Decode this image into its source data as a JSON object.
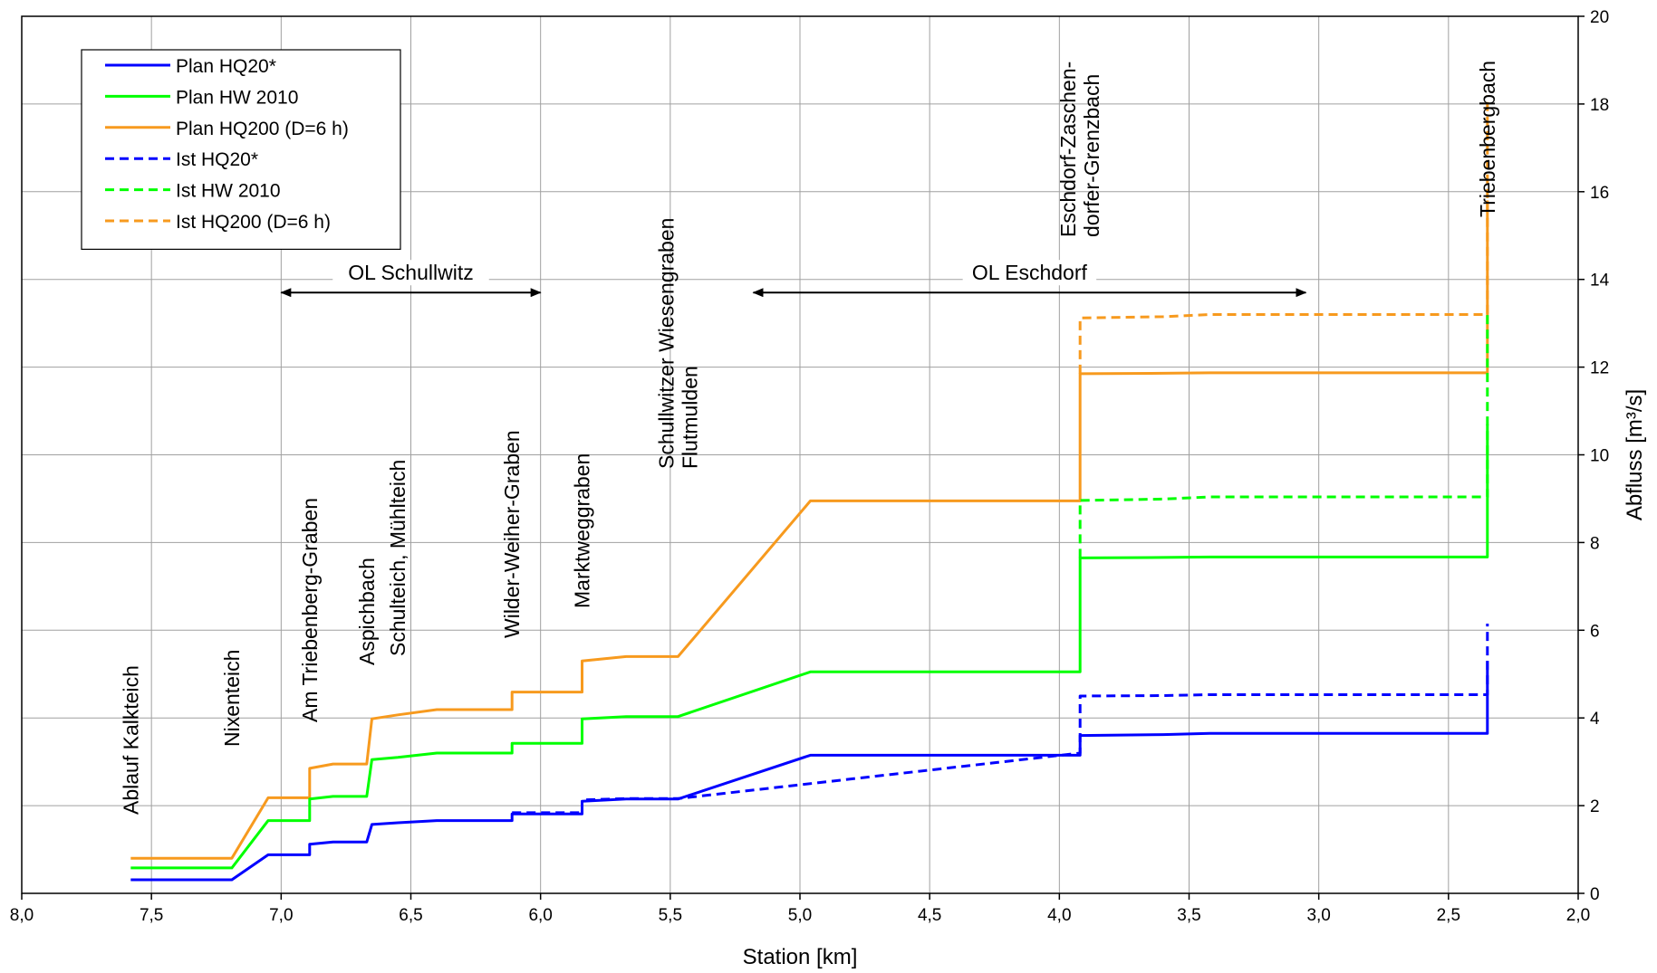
{
  "chart_data": {
    "type": "line",
    "xlabel": "Station [km]",
    "ylabel": "Abfluss [m³/s]",
    "xlim": [
      8.0,
      2.0
    ],
    "ylim": [
      0,
      20
    ],
    "x_reversed": true,
    "y_axis_side": "right",
    "grid": true,
    "legend_position": "top-left",
    "x_ticks": [
      "8,0",
      "7,5",
      "7,0",
      "6,5",
      "6,0",
      "5,5",
      "5,0",
      "4,5",
      "4,0",
      "3,5",
      "3,0",
      "2,5",
      "2,0"
    ],
    "x_tick_values": [
      8.0,
      7.5,
      7.0,
      6.5,
      6.0,
      5.5,
      5.0,
      4.5,
      4.0,
      3.5,
      3.0,
      2.5,
      2.0
    ],
    "y_ticks": [
      "0",
      "2",
      "4",
      "6",
      "8",
      "10",
      "12",
      "14",
      "16",
      "18",
      "20"
    ],
    "y_tick_values": [
      0,
      2,
      4,
      6,
      8,
      10,
      12,
      14,
      16,
      18,
      20
    ],
    "series": [
      {
        "name": "Plan HQ20*",
        "color": "#0000FF",
        "dash": false,
        "x": [
          7.58,
          7.19,
          7.05,
          6.89,
          6.89,
          6.8,
          6.67,
          6.65,
          6.55,
          6.4,
          6.11,
          6.11,
          5.84,
          5.84,
          5.67,
          5.47,
          4.96,
          3.92,
          3.92,
          3.6,
          3.42,
          2.35,
          2.35
        ],
        "y": [
          0.31,
          0.31,
          0.88,
          0.88,
          1.12,
          1.17,
          1.17,
          1.57,
          1.61,
          1.66,
          1.66,
          1.81,
          1.81,
          2.1,
          2.15,
          2.15,
          3.15,
          3.15,
          3.6,
          3.62,
          3.65,
          3.65,
          5.3
        ]
      },
      {
        "name": "Plan HW 2010",
        "color": "#00FF00",
        "dash": false,
        "x": [
          7.58,
          7.19,
          7.05,
          6.89,
          6.89,
          6.8,
          6.67,
          6.65,
          6.55,
          6.4,
          6.11,
          6.11,
          5.84,
          5.84,
          5.67,
          5.47,
          4.96,
          3.92,
          3.92,
          3.6,
          3.42,
          2.35,
          2.35
        ],
        "y": [
          0.58,
          0.58,
          1.66,
          1.66,
          2.15,
          2.21,
          2.21,
          3.05,
          3.1,
          3.2,
          3.2,
          3.42,
          3.42,
          3.98,
          4.03,
          4.03,
          5.05,
          5.05,
          7.65,
          7.66,
          7.67,
          7.67,
          10.7
        ]
      },
      {
        "name": "Plan HQ200 (D=6 h)",
        "color": "#F79A1E",
        "dash": false,
        "x": [
          7.58,
          7.19,
          7.05,
          6.89,
          6.89,
          6.8,
          6.67,
          6.65,
          6.55,
          6.4,
          6.11,
          6.11,
          5.84,
          5.84,
          5.67,
          5.47,
          4.96,
          3.92,
          3.92,
          3.6,
          3.42,
          2.35,
          2.35
        ],
        "y": [
          0.8,
          0.8,
          2.18,
          2.18,
          2.85,
          2.95,
          2.95,
          3.98,
          4.07,
          4.19,
          4.19,
          4.59,
          4.59,
          5.3,
          5.4,
          5.4,
          8.95,
          8.95,
          11.85,
          11.86,
          11.87,
          11.87,
          15.8
        ]
      },
      {
        "name": "Ist HQ20*",
        "color": "#0000FF",
        "dash": true,
        "x": [
          6.11,
          5.84,
          5.84,
          5.67,
          5.47,
          3.92,
          3.92,
          3.6,
          3.42,
          2.35,
          2.35
        ],
        "y": [
          1.84,
          1.84,
          2.13,
          2.16,
          2.16,
          3.2,
          4.5,
          4.51,
          4.53,
          4.53,
          6.15
        ]
      },
      {
        "name": "Ist HW 2010",
        "color": "#00FF00",
        "dash": true,
        "x": [
          3.92,
          3.92,
          3.6,
          3.42,
          2.35,
          2.35
        ],
        "y": [
          7.65,
          8.96,
          8.99,
          9.04,
          9.04,
          13.2
        ]
      },
      {
        "name": "Ist HQ200 (D=6 h)",
        "color": "#F79A1E",
        "dash": true,
        "x": [
          3.92,
          3.92,
          3.6,
          3.42,
          2.35,
          2.35
        ],
        "y": [
          11.85,
          13.12,
          13.15,
          13.2,
          13.2,
          18.2
        ]
      }
    ],
    "range_annotations": [
      {
        "label": "OL Schullwitz",
        "x_start": 7.0,
        "x_end": 6.0,
        "y": 13.7
      },
      {
        "label": "OL Eschdorf",
        "x_start": 5.18,
        "x_end": 3.05,
        "y": 13.7
      }
    ],
    "vertical_annotations": [
      {
        "lines": [
          "Ablauf Kalkteich"
        ],
        "x": 7.58
      },
      {
        "lines": [
          "Nixenteich"
        ],
        "x": 7.19
      },
      {
        "lines": [
          "Am Triebenberg-Graben"
        ],
        "x": 6.89
      },
      {
        "lines": [
          "Aspichbach"
        ],
        "x": 6.67
      },
      {
        "lines": [
          "Schulteich, Mühlteich"
        ],
        "x": 6.55
      },
      {
        "lines": [
          "Wilder-Weiher-Graben"
        ],
        "x": 6.11
      },
      {
        "lines": [
          "Marktweggraben"
        ],
        "x": 5.84
      },
      {
        "lines": [
          "Schullwitzer Wiesengraben",
          "Flutmulden"
        ],
        "x": 5.47
      },
      {
        "lines": [
          "Eschdorf-Zaschen-",
          "dorfer-Grenzbach"
        ],
        "x": 3.92
      },
      {
        "lines": [
          "Triebenbergbach"
        ],
        "x": 2.35
      }
    ]
  }
}
